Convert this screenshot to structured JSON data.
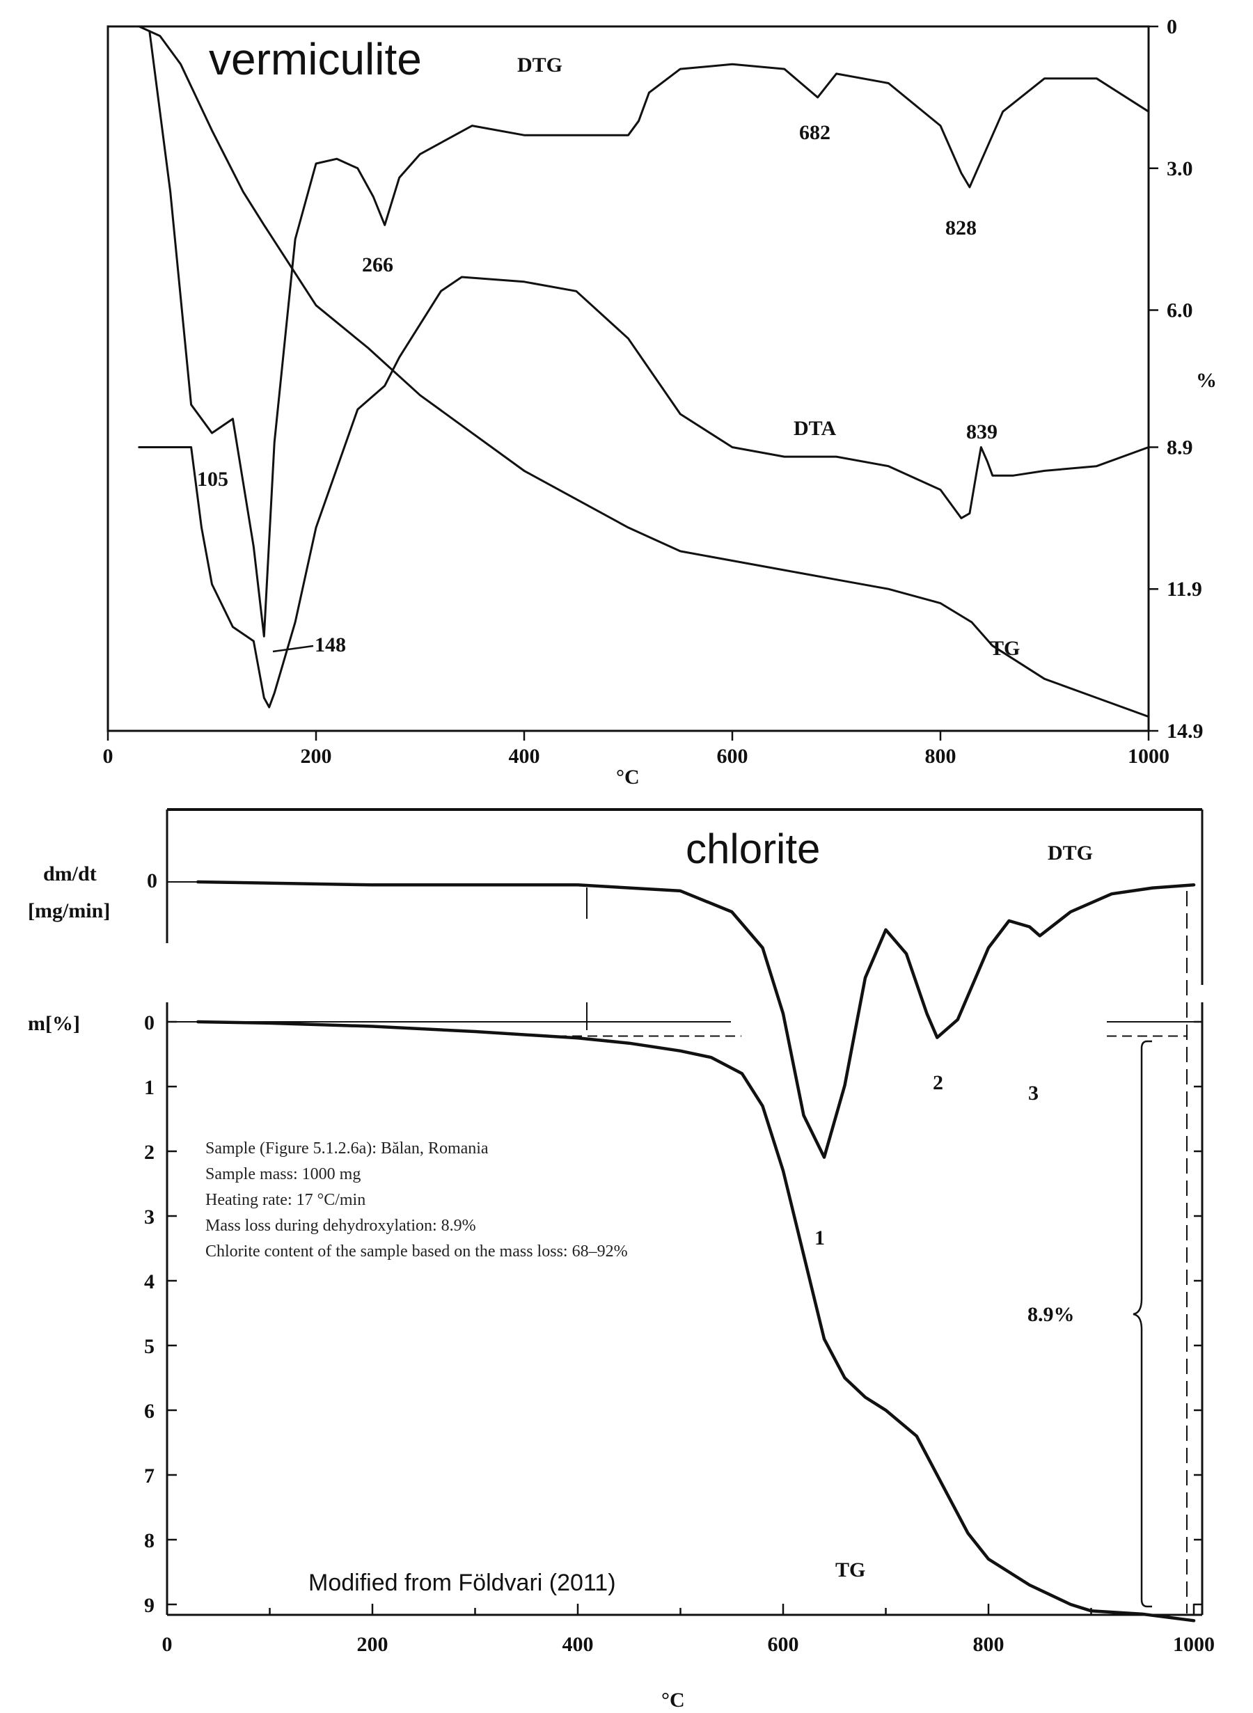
{
  "chart_data": [
    {
      "type": "line",
      "title": "vermiculite",
      "xlabel": "°C",
      "ylabel": "%",
      "xlim": [
        0,
        1000
      ],
      "ylim": [
        0,
        14.9
      ],
      "x_ticks": [
        0,
        200,
        400,
        600,
        800,
        1000
      ],
      "y_ticks": [
        "0",
        "3.0",
        "6.0",
        "8.9",
        "11.9",
        "14.9"
      ],
      "grid": false,
      "series": [
        {
          "name": "DTG",
          "x": [
            40,
            60,
            80,
            100,
            120,
            140,
            150,
            160,
            180,
            200,
            220,
            240,
            255,
            266,
            280,
            300,
            350,
            400,
            450,
            500,
            510,
            520,
            550,
            600,
            650,
            682,
            700,
            750,
            800,
            820,
            828,
            840,
            860,
            900,
            950,
            1000
          ],
          "values": [
            0.1,
            3.5,
            8.0,
            8.6,
            8.3,
            11.0,
            12.9,
            8.8,
            4.5,
            2.9,
            2.8,
            3.0,
            3.6,
            4.2,
            3.2,
            2.7,
            2.1,
            2.3,
            2.3,
            2.3,
            2.0,
            1.4,
            0.9,
            0.8,
            0.9,
            1.5,
            1.0,
            1.2,
            2.1,
            3.1,
            3.4,
            2.8,
            1.8,
            1.1,
            1.1,
            1.8
          ]
        },
        {
          "name": "DTA",
          "x": [
            30,
            80,
            90,
            100,
            120,
            140,
            150,
            155,
            160,
            180,
            200,
            240,
            266,
            280,
            320,
            340,
            400,
            450,
            500,
            550,
            600,
            650,
            700,
            750,
            800,
            820,
            828,
            835,
            839,
            845,
            850,
            870,
            900,
            950,
            1000
          ],
          "values": [
            8.9,
            8.9,
            10.6,
            11.8,
            12.7,
            13.0,
            14.2,
            14.4,
            14.1,
            12.6,
            10.6,
            8.1,
            7.6,
            7.0,
            5.6,
            5.3,
            5.4,
            5.6,
            6.6,
            8.2,
            8.9,
            9.1,
            9.1,
            9.3,
            9.8,
            10.4,
            10.3,
            9.4,
            8.9,
            9.2,
            9.5,
            9.5,
            9.4,
            9.3,
            8.9
          ]
        },
        {
          "name": "TG",
          "x": [
            30,
            50,
            70,
            100,
            130,
            150,
            200,
            250,
            300,
            400,
            500,
            550,
            600,
            650,
            700,
            750,
            800,
            830,
            850,
            900,
            950,
            1000
          ],
          "values": [
            0.0,
            0.2,
            0.8,
            2.2,
            3.5,
            4.2,
            5.9,
            6.8,
            7.8,
            9.4,
            10.6,
            11.1,
            11.3,
            11.5,
            11.7,
            11.9,
            12.2,
            12.6,
            13.1,
            13.8,
            14.2,
            14.6
          ]
        }
      ],
      "annotations": [
        "266",
        "682",
        "828",
        "105",
        "148",
        "839"
      ],
      "curve_labels": [
        "DTG",
        "DTA",
        "TG"
      ]
    },
    {
      "type": "line",
      "title": "chlorite",
      "xlabel": "°C",
      "ylabel": "m[%]",
      "ylabel_top": "dm/dt [mg/min]",
      "xlim": [
        0,
        1000
      ],
      "ylim": [
        0,
        9.5
      ],
      "x_ticks": [
        0,
        200,
        400,
        600,
        800,
        1000
      ],
      "y_ticks": [
        "0",
        "1",
        "2",
        "3",
        "4",
        "5",
        "6",
        "7",
        "8",
        "9"
      ],
      "dtg_zero_label": "0",
      "grid": false,
      "series": [
        {
          "name": "DTG",
          "x": [
            30,
            200,
            400,
            500,
            550,
            580,
            600,
            620,
            640,
            660,
            680,
            700,
            720,
            740,
            750,
            770,
            800,
            820,
            840,
            850,
            880,
            920,
            960,
            1000
          ],
          "values": [
            0.0,
            0.05,
            0.05,
            0.15,
            0.5,
            1.1,
            2.2,
            3.9,
            4.6,
            3.4,
            1.6,
            0.8,
            1.2,
            2.2,
            2.6,
            2.3,
            1.1,
            0.65,
            0.75,
            0.9,
            0.5,
            0.2,
            0.1,
            0.05
          ]
        },
        {
          "name": "TG",
          "x": [
            30,
            100,
            200,
            300,
            400,
            450,
            500,
            530,
            560,
            580,
            600,
            620,
            640,
            660,
            680,
            700,
            730,
            760,
            780,
            800,
            840,
            880,
            900,
            950,
            1000
          ],
          "values": [
            0.0,
            0.02,
            0.07,
            0.15,
            0.25,
            0.33,
            0.45,
            0.55,
            0.8,
            1.3,
            2.3,
            3.6,
            4.9,
            5.5,
            5.8,
            6.0,
            6.4,
            7.3,
            7.9,
            8.3,
            8.7,
            9.0,
            9.1,
            9.15,
            9.25
          ]
        }
      ],
      "peak_labels": [
        "1",
        "2",
        "3"
      ],
      "curve_labels": [
        "DTG",
        "TG"
      ],
      "mass_loss_label": "8.9%",
      "info_lines": [
        "Sample (Figure 5.1.2.6a): Bălan, Romania",
        "Sample mass: 1000 mg",
        "Heating rate: 17 °C/min",
        "Mass loss during dehydroxylation: 8.9%",
        "Chlorite content of the sample based on the mass loss: 68–92%"
      ],
      "credit": "Modified from Földvari (2011)"
    }
  ]
}
